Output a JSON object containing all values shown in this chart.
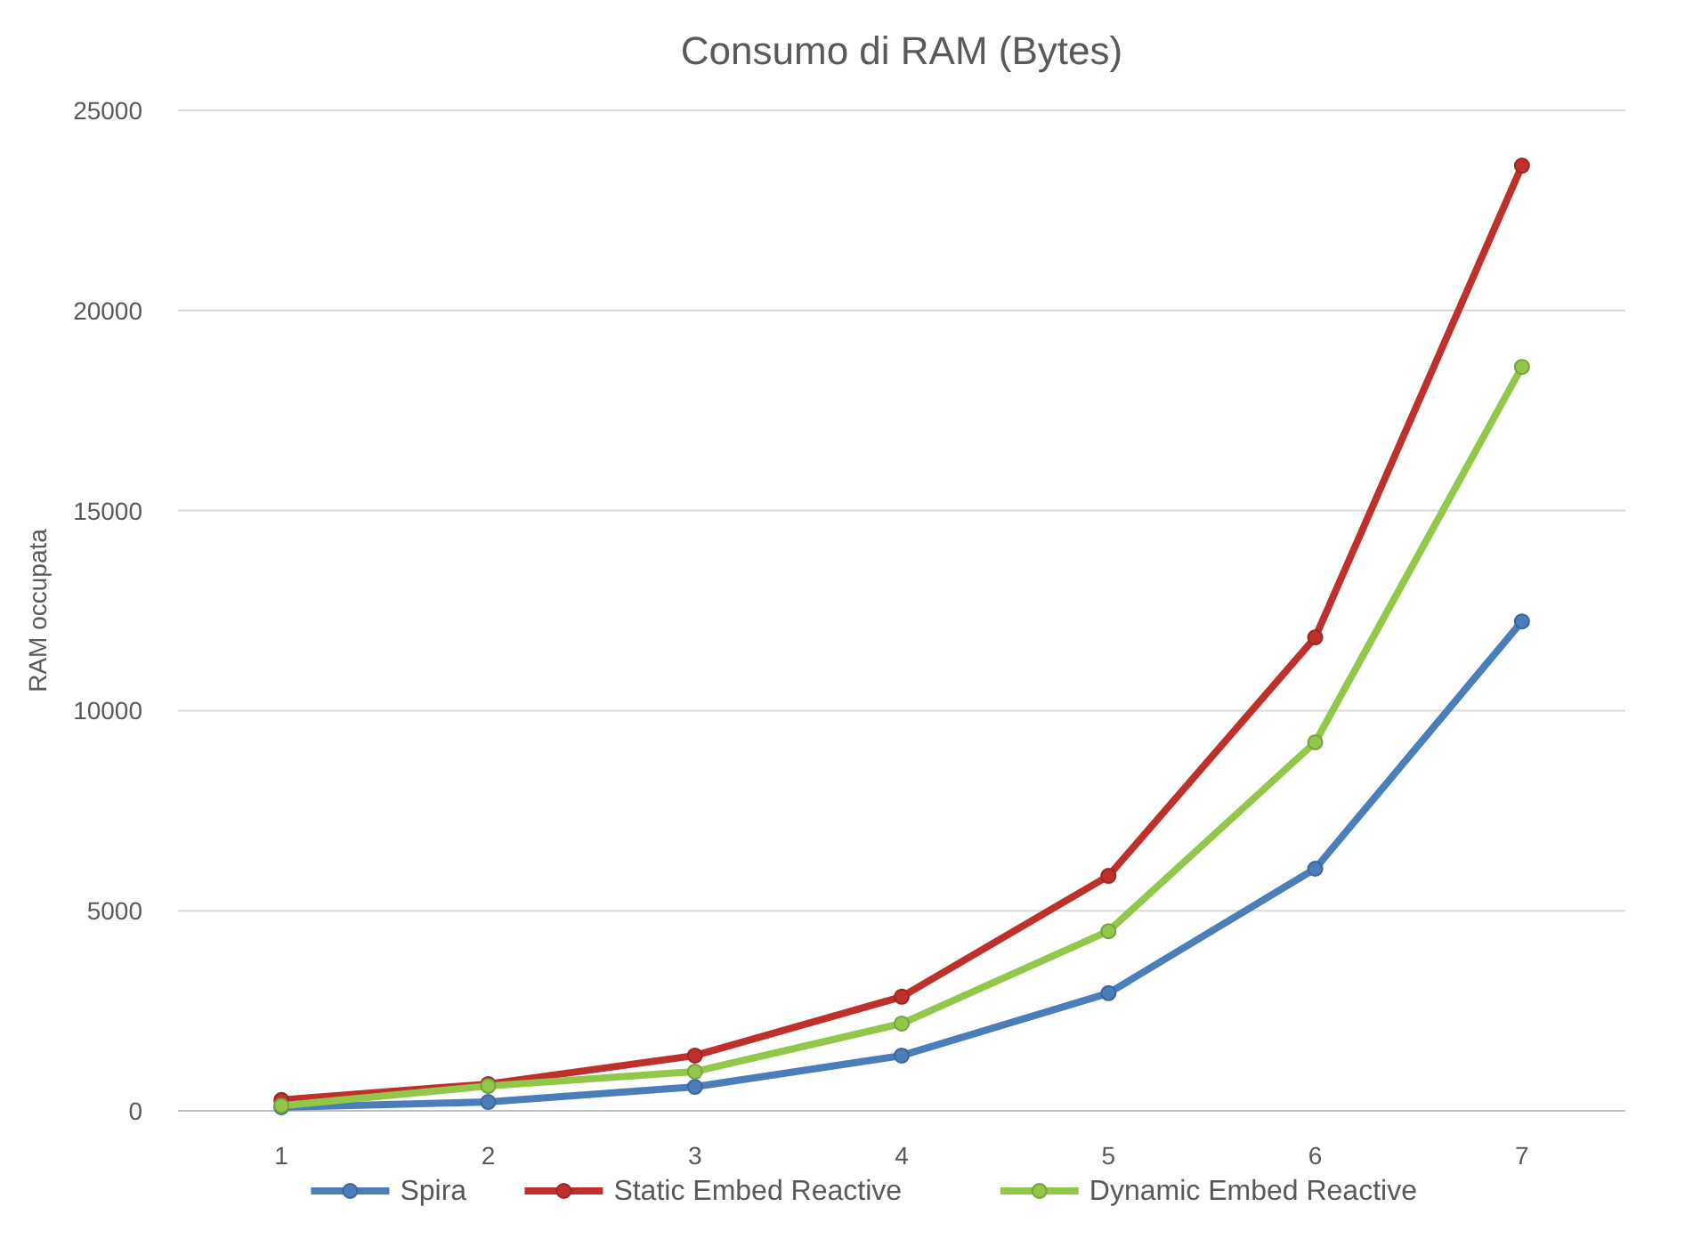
{
  "chart_data": {
    "type": "line",
    "title": "Consumo di RAM (Bytes)",
    "ylabel": "RAM occupata",
    "categories": [
      "1",
      "2",
      "3",
      "4",
      "5",
      "6",
      "7"
    ],
    "ylim": [
      0,
      25000
    ],
    "yticks": [
      0,
      5000,
      10000,
      15000,
      20000,
      25000
    ],
    "grid": "y",
    "legend": "bottom",
    "marker": "circle",
    "line_style": "solid",
    "series": [
      {
        "name": "Spira",
        "color": "#4a7ebb",
        "values": [
          90,
          220,
          600,
          1380,
          2940,
          6050,
          12230
        ]
      },
      {
        "name": "Static Embed Reactive",
        "color": "#c0302a",
        "values": [
          270,
          670,
          1380,
          2850,
          5870,
          11830,
          23620
        ]
      },
      {
        "name": "Dynamic Embed Reactive",
        "color": "#92c84a",
        "values": [
          130,
          620,
          980,
          2180,
          4490,
          9210,
          18590
        ]
      }
    ]
  }
}
